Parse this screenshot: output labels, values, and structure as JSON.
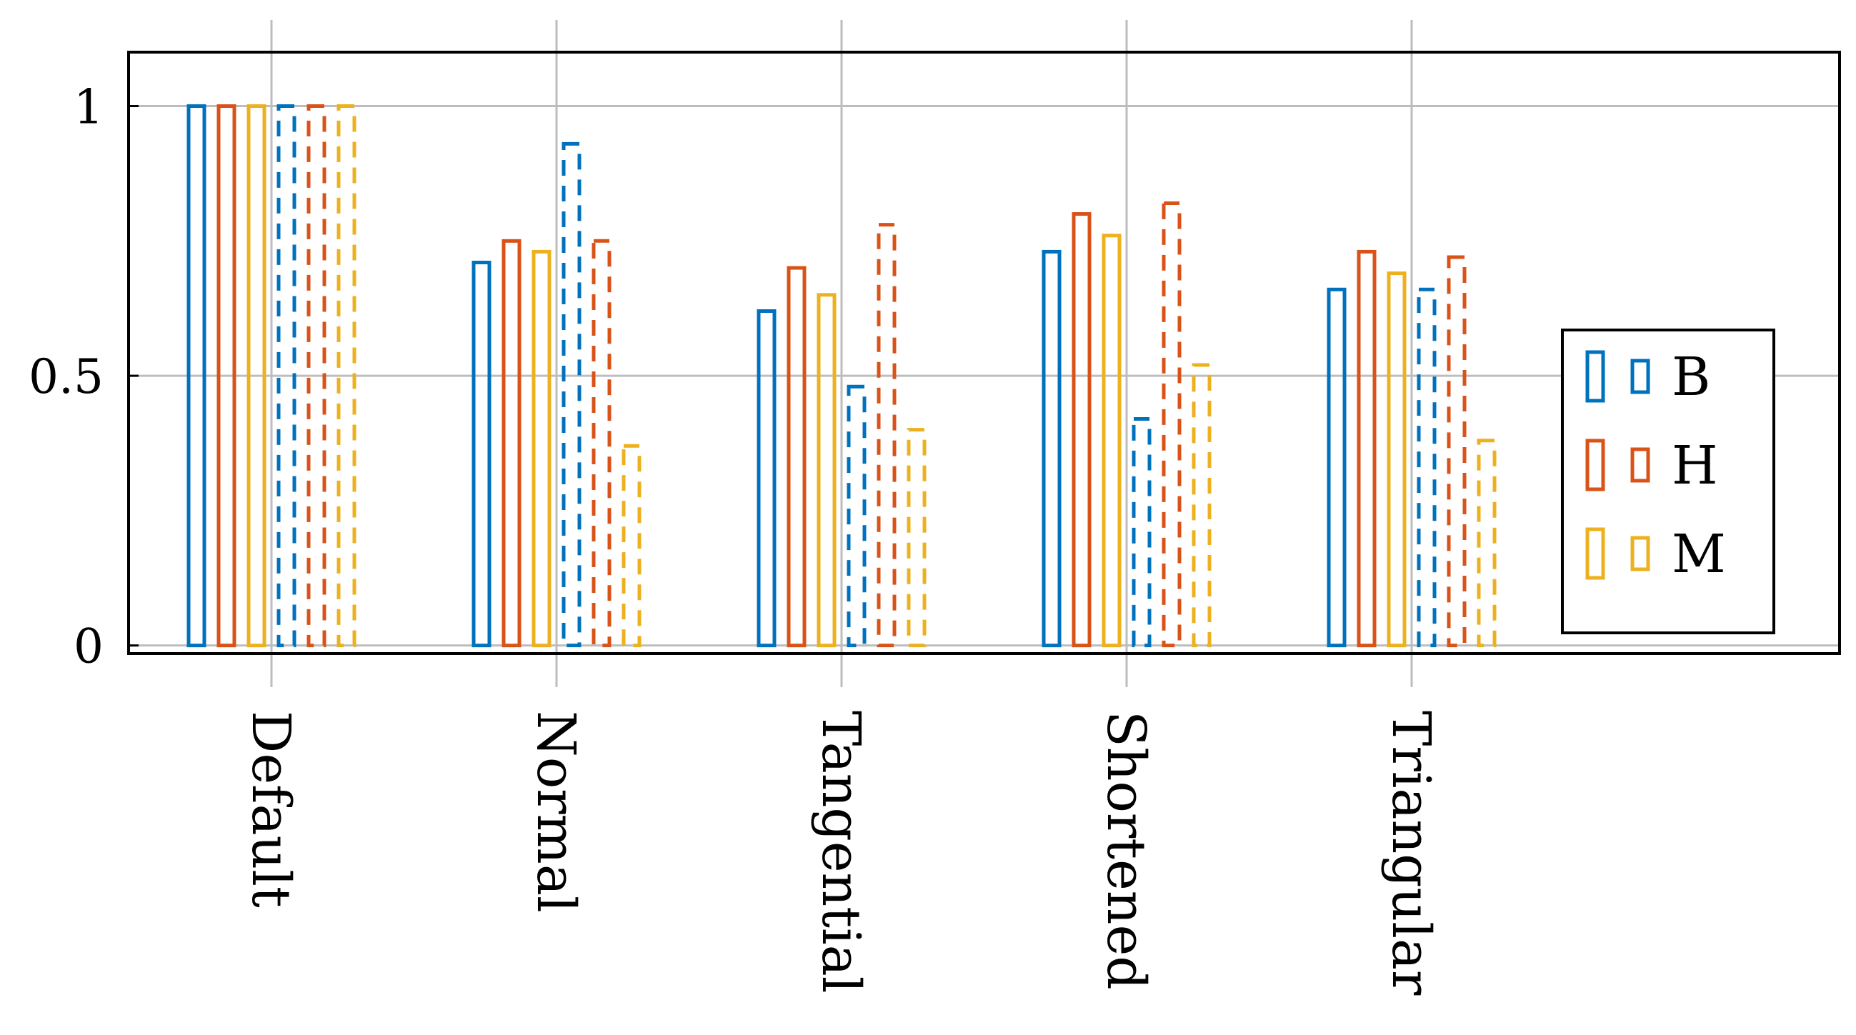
{
  "chart_data": {
    "type": "bar",
    "categories": [
      "Default",
      "Normal",
      "Tangential",
      "Shortened",
      "Triangular"
    ],
    "series": [
      {
        "name": "B",
        "style": "solid",
        "color": "#0072BD",
        "values": [
          1.0,
          0.71,
          0.62,
          0.73,
          0.66
        ]
      },
      {
        "name": "H",
        "style": "solid",
        "color": "#D95319",
        "values": [
          1.0,
          0.75,
          0.7,
          0.8,
          0.73
        ]
      },
      {
        "name": "M",
        "style": "solid",
        "color": "#EDB120",
        "values": [
          1.0,
          0.73,
          0.65,
          0.76,
          0.69
        ]
      },
      {
        "style": "dashed",
        "color": "#0072BD",
        "values": [
          1.0,
          0.93,
          0.48,
          0.42,
          0.66
        ]
      },
      {
        "style": "dashed",
        "color": "#D95319",
        "values": [
          1.0,
          0.75,
          0.78,
          0.82,
          0.72
        ]
      },
      {
        "style": "dashed",
        "color": "#EDB120",
        "values": [
          1.0,
          0.37,
          0.4,
          0.52,
          0.38
        ]
      }
    ],
    "yticks": [
      0,
      0.5,
      1
    ],
    "ytick_labels": [
      "0",
      "0.5",
      "1"
    ],
    "ylim": [
      -0.015,
      1.1
    ],
    "grid": true,
    "legend": {
      "position": "right",
      "entries": [
        {
          "label": "B",
          "color": "#0072BD"
        },
        {
          "label": "H",
          "color": "#D95319"
        },
        {
          "label": "M",
          "color": "#EDB120"
        }
      ]
    },
    "title": "",
    "xlabel": "",
    "ylabel": ""
  }
}
